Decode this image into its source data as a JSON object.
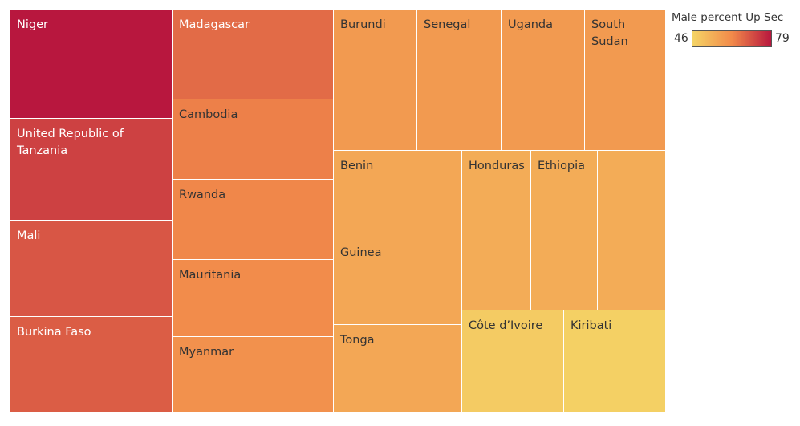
{
  "chart_data": {
    "type": "treemap",
    "measure": "Male percent Up Sec",
    "color_scale": {
      "min": 46,
      "max": 79,
      "low_color": "#f4d466",
      "mid_color": "#f28a4a",
      "high_color": "#b8173e"
    },
    "items": [
      {
        "label": "Niger",
        "value": 79
      },
      {
        "label": "United Republic of Tanzania",
        "value": 73
      },
      {
        "label": "Mali",
        "value": 70
      },
      {
        "label": "Burkina Faso",
        "value": 69
      },
      {
        "label": "Madagascar",
        "value": 67
      },
      {
        "label": "Cambodia",
        "value": 64
      },
      {
        "label": "Rwanda",
        "value": 63
      },
      {
        "label": "Mauritania",
        "value": 62
      },
      {
        "label": "Myanmar",
        "value": 61
      },
      {
        "label": "Burundi",
        "value": 59
      },
      {
        "label": "Senegal",
        "value": 59
      },
      {
        "label": "Uganda",
        "value": 59
      },
      {
        "label": "South Sudan",
        "value": 59
      },
      {
        "label": "Benin",
        "value": 56
      },
      {
        "label": "Guinea",
        "value": 56
      },
      {
        "label": "Tonga",
        "value": 56
      },
      {
        "label": "Honduras",
        "value": 55
      },
      {
        "label": "Ethiopia",
        "value": 55
      },
      {
        "label": "",
        "value": 55
      },
      {
        "label": "Côte d'Ivoire",
        "value": 48
      },
      {
        "label": "Kiribati",
        "value": 47
      }
    ]
  },
  "legend": {
    "title": "Male percent Up Sec",
    "min_label": "46",
    "max_label": "79"
  }
}
